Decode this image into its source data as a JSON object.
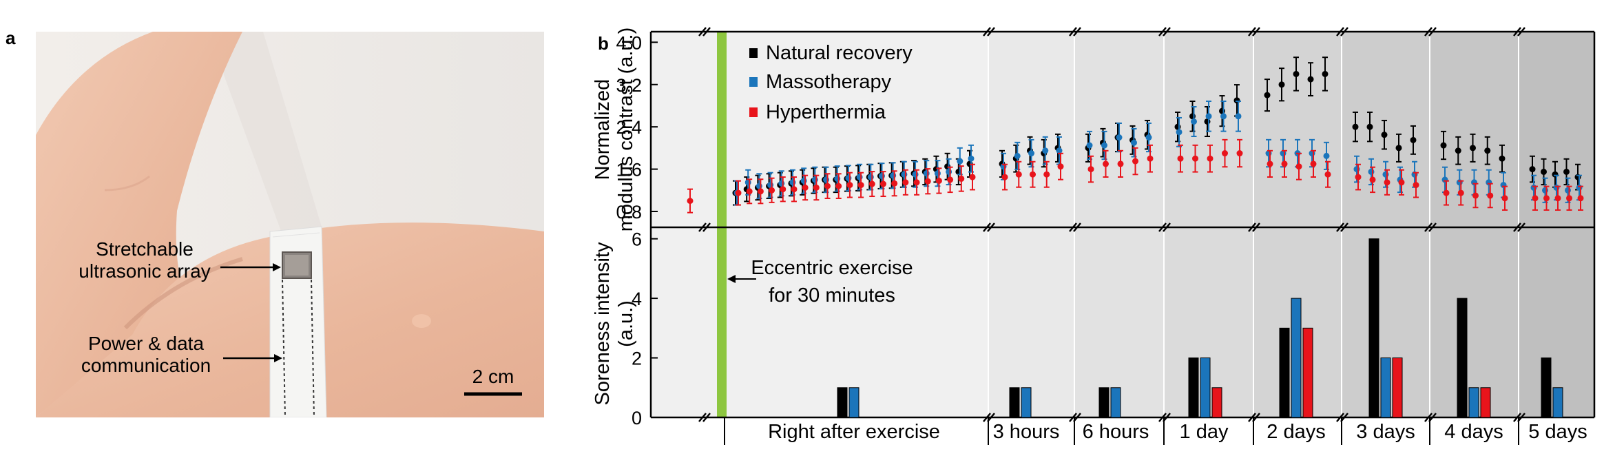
{
  "panel_a": {
    "label": "a",
    "device_label_line1": "Stretchable",
    "device_label_line2": "ultrasonic array",
    "power_label_line1": "Power & data",
    "power_label_line2": "communication",
    "scale_bar_label": "2 cm"
  },
  "panel_b": {
    "label": "b"
  },
  "colors": {
    "natural": "#000000",
    "massotherapy": "#1b75bb",
    "hyperthermia": "#e8141b",
    "exercise_bar": "#8dc63f"
  },
  "chart_data": [
    {
      "type": "scatter",
      "title": "",
      "ylabel_line1": "Normalized",
      "ylabel_line2": "modulus contrast (a.u.)",
      "ylim": [
        0.5,
        4.2
      ],
      "yticks": [
        "0.8",
        "1.6",
        "2.4",
        "3.2",
        "4.0"
      ],
      "legend": [
        "Natural recovery",
        "Massotherapy",
        "Hyperthermia"
      ],
      "baseline": 1.0,
      "groups": [
        {
          "label": "Right after exercise",
          "natural": [
            1.15,
            1.22,
            1.25,
            1.28,
            1.3,
            1.33,
            1.35,
            1.38,
            1.4,
            1.4,
            1.42,
            1.43,
            1.45,
            1.47,
            1.48,
            1.5,
            1.52,
            1.55,
            1.6,
            1.65,
            1.55,
            1.7
          ],
          "massotherapy": [
            1.15,
            1.35,
            1.28,
            1.3,
            1.33,
            1.35,
            1.38,
            1.4,
            1.4,
            1.42,
            1.43,
            1.45,
            1.45,
            1.47,
            1.48,
            1.5,
            1.5,
            1.52,
            1.52,
            1.55,
            1.75,
            1.8
          ],
          "hyperthermia": [
            1.15,
            1.18,
            1.18,
            1.2,
            1.22,
            1.22,
            1.25,
            1.25,
            1.28,
            1.28,
            1.3,
            1.3,
            1.32,
            1.32,
            1.33,
            1.35,
            1.35,
            1.37,
            1.38,
            1.4,
            1.42,
            1.45
          ]
        },
        {
          "label": "3 hours",
          "natural": [
            1.7,
            1.8,
            1.95,
            1.9,
            2.0
          ],
          "massotherapy": [
            1.65,
            1.85,
            1.9,
            1.95,
            1.95
          ],
          "hyperthermia": [
            1.45,
            1.5,
            1.5,
            1.5,
            1.65
          ]
        },
        {
          "label": "6 hours",
          "natural": [
            2.0,
            2.1,
            2.2,
            2.15,
            2.25
          ],
          "massotherapy": [
            2.05,
            2.05,
            2.2,
            2.1,
            2.2
          ],
          "hyperthermia": [
            1.6,
            1.7,
            1.7,
            1.75,
            1.8
          ]
        },
        {
          "label": "1 day",
          "natural": [
            2.4,
            2.6,
            2.5,
            2.7,
            2.9
          ],
          "massotherapy": [
            2.3,
            2.5,
            2.6,
            2.6,
            2.6
          ],
          "hyperthermia": [
            1.8,
            1.8,
            1.8,
            1.9,
            1.9
          ]
        },
        {
          "label": "2 days",
          "natural": [
            3.0,
            3.2,
            3.4,
            3.3,
            3.4
          ],
          "massotherapy": [
            1.9,
            1.9,
            1.9,
            1.9,
            1.85
          ],
          "hyperthermia": [
            1.7,
            1.7,
            1.65,
            1.7,
            1.5
          ]
        },
        {
          "label": "3 days",
          "natural": [
            2.4,
            2.4,
            2.25,
            2.0,
            2.15
          ],
          "massotherapy": [
            1.6,
            1.55,
            1.5,
            1.4,
            1.5
          ],
          "hyperthermia": [
            1.45,
            1.4,
            1.35,
            1.35,
            1.3
          ]
        },
        {
          "label": "4 days",
          "natural": [
            2.05,
            1.95,
            2.0,
            1.95,
            1.8
          ],
          "massotherapy": [
            1.4,
            1.35,
            1.35,
            1.35,
            1.3
          ],
          "hyperthermia": [
            1.15,
            1.15,
            1.1,
            1.1,
            1.05
          ]
        },
        {
          "label": "5 days",
          "natural": [
            1.6,
            1.55,
            1.5,
            1.55,
            1.45
          ],
          "massotherapy": [
            1.25,
            1.2,
            1.25,
            1.2,
            1.25
          ],
          "hyperthermia": [
            1.05,
            1.05,
            1.05,
            1.05,
            1.05
          ]
        }
      ]
    },
    {
      "type": "bar",
      "ylabel_line1": "Soreness intensity",
      "ylabel_line2": "(a.u.)",
      "ylim": [
        0,
        6.2
      ],
      "yticks": [
        "0",
        "2",
        "4",
        "6"
      ],
      "annotation_line1": "Eccentric exercise",
      "annotation_line2": "for 30 minutes",
      "categories": [
        "Right after exercise",
        "3 hours",
        "6 hours",
        "1 day",
        "2 days",
        "3 days",
        "4 days",
        "5 days"
      ],
      "series": [
        {
          "name": "Natural recovery",
          "values": [
            1,
            1,
            1,
            2,
            3,
            6,
            4,
            2
          ]
        },
        {
          "name": "Massotherapy",
          "values": [
            1,
            1,
            1,
            2,
            4,
            2,
            1,
            1
          ]
        },
        {
          "name": "Hyperthermia",
          "values": [
            0,
            0,
            0,
            1,
            3,
            2,
            1,
            0
          ]
        }
      ]
    }
  ]
}
